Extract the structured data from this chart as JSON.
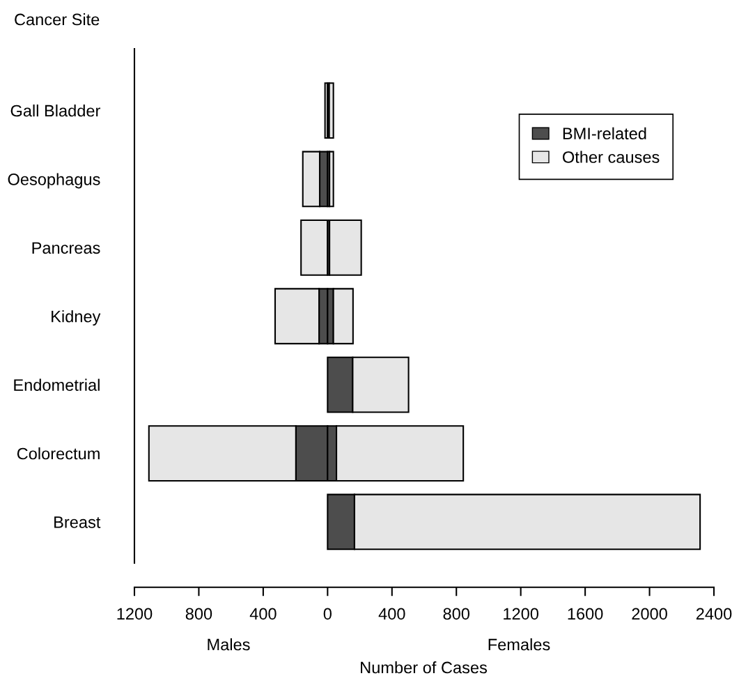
{
  "chart_data": {
    "type": "bar",
    "orientation": "horizontal",
    "stacked": true,
    "ylabel": "Cancer Site",
    "xlabel": "Number of Cases",
    "annotations": [
      "Males",
      "Females"
    ],
    "categories": [
      "Gall Bladder",
      "Oesophagus",
      "Pancreas",
      "Kidney",
      "Endometrial",
      "Colorectum",
      "Breast"
    ],
    "series": [
      {
        "color": "#4d4d4d",
        "values": [
          null,
          -49,
          null,
          -53,
          0,
          -197,
          0
        ]
      },
      {
        "color": "#e6e6e6",
        "values": [
          -16,
          -105,
          -165,
          -273,
          0,
          -913,
          0
        ]
      },
      {
        "name": "BMI-related",
        "color": "#4d4d4d",
        "values": [
          10,
          12,
          12,
          36,
          156,
          55,
          167
        ]
      },
      {
        "name": "Other causes",
        "color": "#e6e6e6",
        "values": [
          26,
          24,
          197,
          122,
          347,
          788,
          2147
        ]
      }
    ],
    "xlim": [
      -1200,
      2400
    ],
    "xticks": [
      {
        "value": -1200,
        "label": "1200"
      },
      {
        "value": -800,
        "label": "800"
      },
      {
        "value": -400,
        "label": "400"
      },
      0,
      400,
      800,
      1200,
      1600,
      2000,
      2400
    ],
    "legend": "top right",
    "grid": false
  }
}
